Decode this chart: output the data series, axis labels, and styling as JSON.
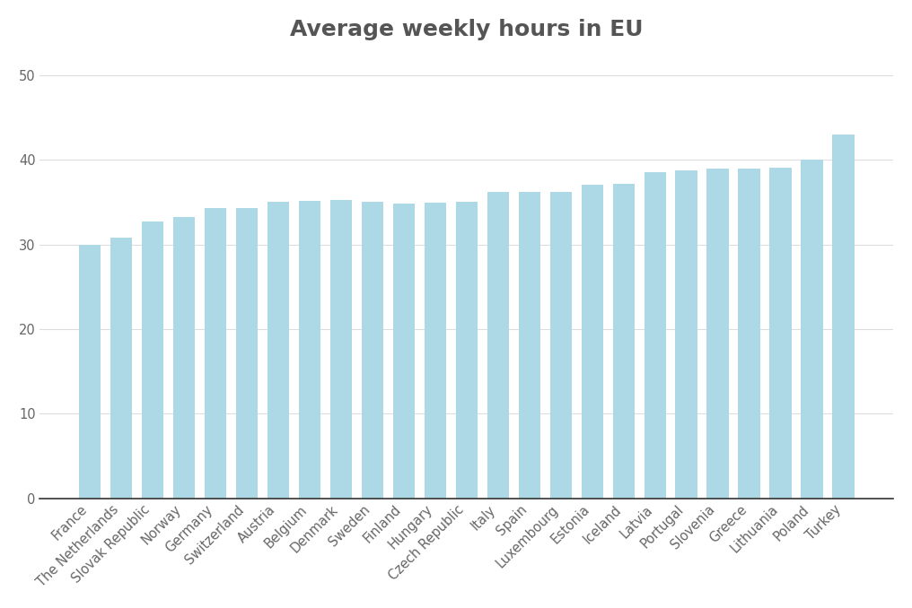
{
  "title": "Average weekly hours in EU",
  "categories": [
    "France",
    "The Netherlands",
    "Slovak Republic",
    "Norway",
    "Germany",
    "Switzerland",
    "Austria",
    "Belgium",
    "Denmark",
    "Sweden",
    "Finland",
    "Hungary",
    "Czech Republic",
    "Italy",
    "Spain",
    "Luxembourg",
    "Estonia",
    "Iceland",
    "Latvia",
    "Portugal",
    "Slovenia",
    "Greece",
    "Lithuania",
    "Poland",
    "Turkey"
  ],
  "values": [
    30.0,
    30.8,
    32.7,
    33.2,
    34.3,
    34.3,
    35.0,
    35.1,
    35.2,
    35.0,
    34.8,
    34.9,
    35.0,
    36.2,
    36.2,
    36.2,
    37.0,
    37.1,
    38.5,
    38.7,
    39.0,
    39.0,
    39.1,
    40.0,
    43.0
  ],
  "bar_color": "#add8e6",
  "background_color": "#ffffff",
  "plot_bg_color": "#ffffff",
  "title_color": "#555555",
  "tick_color": "#666666",
  "grid_color": "#dddddd",
  "ylim": [
    0,
    52
  ],
  "yticks": [
    0,
    10,
    20,
    30,
    40,
    50
  ],
  "title_fontsize": 18,
  "tick_fontsize": 10.5,
  "label_fontsize": 10.5
}
